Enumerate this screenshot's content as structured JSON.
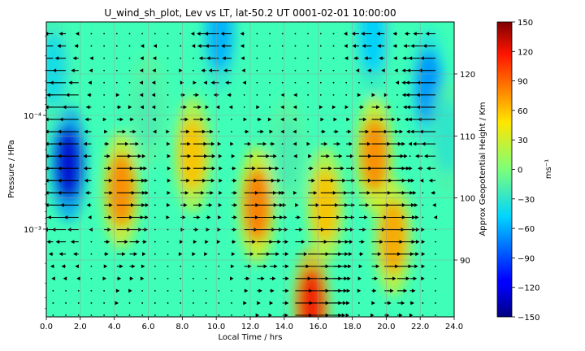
{
  "chart_data": {
    "type": "heatmap",
    "title": "U_wind_sh_plot, Lev vs LT, lat-50.2 UT 0001-02-01 10:00:00",
    "xlabel": "Local Time / hrs",
    "ylabel": "Pressure / HPa",
    "y2label": "Approx Geopotential Height / Km",
    "colorbar_label": "ms⁻¹",
    "xlim": [
      0,
      24
    ],
    "x_ticks": [
      "0.0",
      "2.0",
      "4.0",
      "6.0",
      "8.0",
      "10.0",
      "12.0",
      "14.0",
      "16.0",
      "18.0",
      "20.0",
      "22.0",
      "24.0"
    ],
    "y_scale": "log",
    "y_ticks": [
      {
        "label": "10⁻⁴",
        "value": 0.0001
      },
      {
        "label": "10⁻³",
        "value": 0.001
      }
    ],
    "y2_ticks": [
      {
        "label": "120",
        "value": 120
      },
      {
        "label": "110",
        "value": 110
      },
      {
        "label": "100",
        "value": 100
      },
      {
        "label": "90",
        "value": 90
      }
    ],
    "colorbar_ticks": [
      "150",
      "120",
      "90",
      "60",
      "30",
      "0",
      "−30",
      "−60",
      "−90",
      "−120",
      "−150"
    ],
    "clim": [
      -150,
      150
    ],
    "colormap": "jet",
    "grid": true,
    "overlay": "wind vectors (quiver)",
    "zonal_features": [
      {
        "x": 1.3,
        "y": 0.48,
        "value": -130
      },
      {
        "x": 0.4,
        "y": 0.16,
        "value": -40
      },
      {
        "x": 4.4,
        "y": 0.57,
        "value": 80
      },
      {
        "x": 8.6,
        "y": 0.45,
        "value": 60
      },
      {
        "x": 10.2,
        "y": 0.04,
        "value": -60
      },
      {
        "x": 12.4,
        "y": 0.62,
        "value": 85
      },
      {
        "x": 15.6,
        "y": 0.96,
        "value": 120
      },
      {
        "x": 16.4,
        "y": 0.62,
        "value": 60
      },
      {
        "x": 19.3,
        "y": 0.45,
        "value": 80
      },
      {
        "x": 20.4,
        "y": 0.73,
        "value": 70
      },
      {
        "x": 22.5,
        "y": 0.22,
        "value": -70
      },
      {
        "x": 23.6,
        "y": 0.39,
        "value": -30
      },
      {
        "x": 19.2,
        "y": 0.05,
        "value": -50
      },
      {
        "x": 6.0,
        "y": 0.3,
        "value": -20
      },
      {
        "x": 14.2,
        "y": 0.45,
        "value": -20
      }
    ]
  }
}
